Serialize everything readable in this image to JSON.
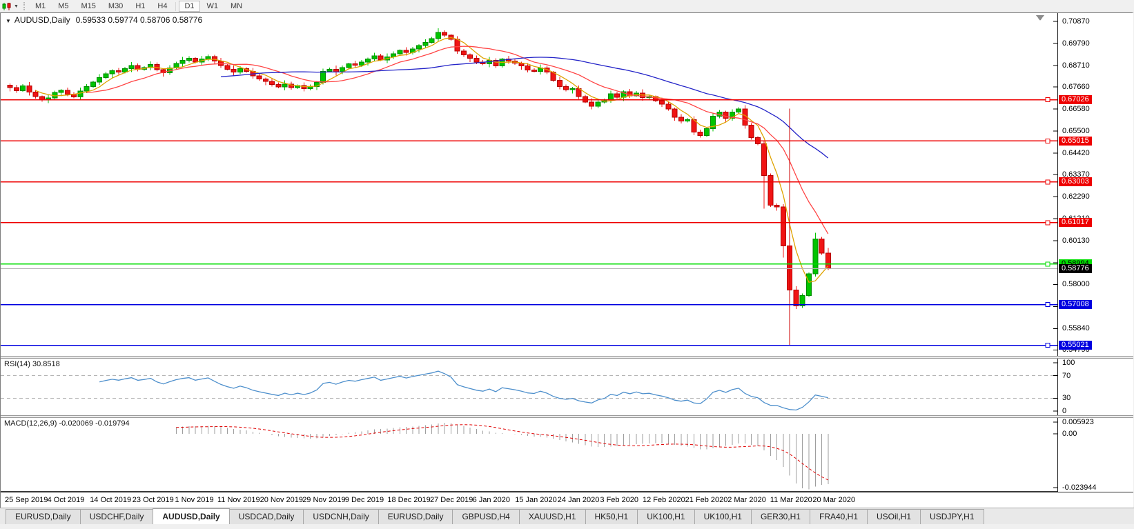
{
  "toolbar": {
    "timeframes": [
      "M1",
      "M5",
      "M15",
      "M30",
      "H1",
      "H4",
      "D1",
      "W1",
      "MN"
    ],
    "active_timeframe": "D1"
  },
  "chart": {
    "title": {
      "symbol": "AUDUSD,Daily",
      "ohlc": "0.59533 0.59774 0.58706 0.58776"
    },
    "price_axis": {
      "ticks": [
        "0.70870",
        "0.69790",
        "0.68710",
        "0.67660",
        "0.66580",
        "0.65500",
        "0.64420",
        "0.63370",
        "0.62290",
        "0.61210",
        "0.60130",
        "0.59050",
        "0.58000",
        "0.56920",
        "0.55840",
        "0.54790"
      ]
    },
    "hlines": [
      {
        "price": 0.67026,
        "label": "0.67026",
        "color": "#ee0000",
        "text": "#fff"
      },
      {
        "price": 0.65015,
        "label": "0.65015",
        "color": "#ee0000",
        "text": "#fff"
      },
      {
        "price": 0.63003,
        "label": "0.63003",
        "color": "#ee0000",
        "text": "#fff"
      },
      {
        "price": 0.61017,
        "label": "0.61017",
        "color": "#ee0000",
        "text": "#fff"
      },
      {
        "price": 0.58994,
        "label": "0.58994",
        "color": "#00dd00",
        "text": "#000"
      },
      {
        "price": 0.57008,
        "label": "0.57008",
        "color": "#0000e0",
        "text": "#fff"
      },
      {
        "price": 0.55021,
        "label": "0.55021",
        "color": "#0000e0",
        "text": "#fff"
      }
    ],
    "current_price": {
      "label": "0.58776",
      "price": 0.58776
    },
    "vline": {
      "index": 122,
      "from": 0.666,
      "to": 0.55,
      "color": "#cc0000"
    },
    "candles": {
      "first_open": 0.6775,
      "closes": [
        0.6762,
        0.6748,
        0.6771,
        0.674,
        0.6718,
        0.6701,
        0.6712,
        0.6738,
        0.6749,
        0.6731,
        0.6716,
        0.6745,
        0.6768,
        0.679,
        0.6812,
        0.683,
        0.6845,
        0.6838,
        0.6855,
        0.687,
        0.6852,
        0.6861,
        0.6875,
        0.685,
        0.6835,
        0.6858,
        0.688,
        0.6895,
        0.6905,
        0.6888,
        0.6902,
        0.6915,
        0.6893,
        0.687,
        0.6852,
        0.6838,
        0.6856,
        0.6842,
        0.682,
        0.6805,
        0.6792,
        0.6778,
        0.6765,
        0.678,
        0.6762,
        0.6772,
        0.6758,
        0.6768,
        0.6788,
        0.6842,
        0.6852,
        0.6838,
        0.686,
        0.6878,
        0.6872,
        0.6888,
        0.6902,
        0.6918,
        0.6898,
        0.6912,
        0.6928,
        0.6944,
        0.6934,
        0.6952,
        0.6968,
        0.6984,
        0.7002,
        0.7032,
        0.7018,
        0.6998,
        0.6942,
        0.6922,
        0.6905,
        0.6888,
        0.6878,
        0.6895,
        0.6868,
        0.6902,
        0.6892,
        0.6882,
        0.6868,
        0.6848,
        0.6842,
        0.6858,
        0.6838,
        0.6798,
        0.6768,
        0.6752,
        0.6758,
        0.6718,
        0.6692,
        0.6672,
        0.6692,
        0.6702,
        0.6732,
        0.6715,
        0.6742,
        0.6722,
        0.6736,
        0.6714,
        0.6718,
        0.6698,
        0.6682,
        0.6658,
        0.6618,
        0.6598,
        0.6605,
        0.6545,
        0.6528,
        0.6562,
        0.6622,
        0.6642,
        0.6612,
        0.6642,
        0.6658,
        0.6578,
        0.6518,
        0.6488,
        0.6332,
        0.6188,
        0.6178,
        0.5988,
        0.5772,
        0.5695,
        0.5745,
        0.5852,
        0.6022,
        0.59533,
        0.58776
      ],
      "wick_cycle": [
        0.0007,
        0.0014,
        0.0009,
        0.0018,
        0.0011,
        0.0006,
        0.0016,
        0.001
      ],
      "overrides": {
        "67": {
          "h": 0.7052
        },
        "118": {
          "l": 0.617
        },
        "121": {
          "l": 0.593
        },
        "122": {
          "h": 0.594,
          "l": 0.5506
        },
        "126": {
          "h": 0.6052
        },
        "128": {
          "h": 0.59774,
          "l": 0.58706
        }
      },
      "up_color": "#00c400",
      "down_color": "#f01414"
    },
    "moving_averages": [
      {
        "period": 5,
        "color": "#dfa300"
      },
      {
        "period": 13,
        "color": "#ff4545"
      },
      {
        "period": 34,
        "color": "#2424c8"
      }
    ],
    "rsi": {
      "label": "RSI(14)",
      "value": "30.8518",
      "period": 14,
      "levels": [
        70,
        30
      ],
      "ticks": [
        "100",
        "70",
        "30",
        "0"
      ],
      "color": "#4d8fcc"
    },
    "macd": {
      "label": "MACD(12,26,9)",
      "values": "-0.020069 -0.019794",
      "fast": 12,
      "slow": 26,
      "signal": 9,
      "ticks": [
        {
          "v": 0.005923,
          "label": "0.005923"
        },
        {
          "v": 0,
          "label": "0.00"
        },
        {
          "v": -0.023944,
          "label": "-0.023944"
        }
      ],
      "hist_color": "#9e9e9e",
      "signal_color": "#e00000"
    },
    "layout": {
      "price": {
        "max": 0.712,
        "min": 0.545
      },
      "rsi": {
        "max": 100,
        "min": 0
      },
      "macd": {
        "max": 0.0068,
        "min": -0.0245
      }
    },
    "dates": [
      "25 Sep 2019",
      "4 Oct 2019",
      "14 Oct 2019",
      "23 Oct 2019",
      "1 Nov 2019",
      "11 Nov 2019",
      "20 Nov 2019",
      "29 Nov 2019",
      "9 Dec 2019",
      "18 Dec 2019",
      "27 Dec 2019",
      "6 Jan 2020",
      "15 Jan 2020",
      "24 Jan 2020",
      "3 Feb 2020",
      "12 Feb 2020",
      "21 Feb 2020",
      "2 Mar 2020",
      "11 Mar 2020",
      "20 Mar 2020"
    ]
  },
  "tabs": {
    "items": [
      "EURUSD,Daily",
      "USDCHF,Daily",
      "AUDUSD,Daily",
      "USDCAD,Daily",
      "USDCNH,Daily",
      "EURUSD,Daily",
      "GBPUSD,H4",
      "XAUUSD,H1",
      "HK50,H1",
      "UK100,H1",
      "UK100,H1",
      "GER30,H1",
      "FRA40,H1",
      "USOil,H1",
      "USDJPY,H1"
    ],
    "active_index": 2
  }
}
